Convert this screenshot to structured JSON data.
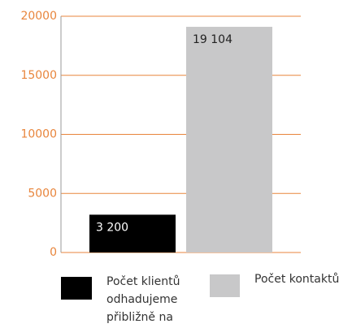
{
  "chart_data": {
    "type": "bar",
    "categories": [
      null
    ],
    "series": [
      {
        "name": "Počet klientů odhadujeme přibližně na",
        "color": "#000000",
        "values": [
          3200
        ],
        "value_labels": [
          "3 200"
        ]
      },
      {
        "name": "Počet kontaktů",
        "color": "#c8c8c9",
        "values": [
          19104
        ],
        "value_labels": [
          "19 104"
        ]
      }
    ],
    "ylim": [
      0,
      20000
    ],
    "yticks": [
      0,
      5000,
      10000,
      15000,
      20000
    ],
    "grid": true,
    "grid_color": "#e8853c"
  }
}
